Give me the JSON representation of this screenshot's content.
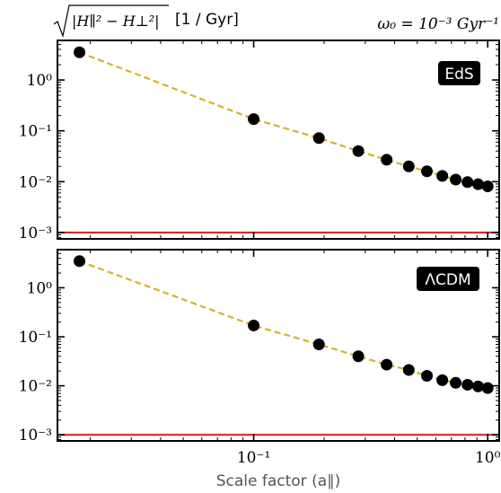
{
  "header": {
    "sqrt_inner": "|H∥² − H⊥²|",
    "units": "[1 / Gyr]",
    "omega_label": "ω₀ = 10⁻³ Gyr⁻¹"
  },
  "xlabel": "Scale factor (a∥)",
  "chart_data": [
    {
      "type": "scatter",
      "panel_label": "EdS",
      "x_scale": "log",
      "y_scale": "log",
      "xlim": [
        0.0145,
        1.12
      ],
      "ylim": [
        0.00075,
        6
      ],
      "grid": false,
      "x_ticks": [
        "10⁻¹",
        "10⁰"
      ],
      "y_ticks": [
        "10⁰",
        "10⁻¹",
        "10⁻²",
        "10⁻³"
      ],
      "series": [
        {
          "style": "points",
          "color": "#000000",
          "x": [
            0.018,
            0.1,
            0.19,
            0.28,
            0.37,
            0.46,
            0.55,
            0.64,
            0.73,
            0.82,
            0.91,
            1.0
          ],
          "y": [
            3.5,
            0.17,
            0.072,
            0.04,
            0.027,
            0.02,
            0.016,
            0.013,
            0.011,
            0.0098,
            0.0089,
            0.0081
          ]
        },
        {
          "style": "dashed-line",
          "color": "#d4b32c",
          "x": [
            0.018,
            0.1,
            0.19,
            0.28,
            0.37,
            0.46,
            0.55,
            0.64,
            0.73,
            0.82,
            0.91,
            1.0
          ],
          "y": [
            3.5,
            0.17,
            0.072,
            0.04,
            0.027,
            0.02,
            0.016,
            0.013,
            0.011,
            0.0098,
            0.0089,
            0.0081
          ]
        },
        {
          "style": "horizontal-line",
          "color": "#d62728",
          "y": 0.001
        }
      ]
    },
    {
      "type": "scatter",
      "panel_label": "ΛCDM",
      "x_scale": "log",
      "y_scale": "log",
      "xlim": [
        0.0145,
        1.12
      ],
      "ylim": [
        0.00075,
        6
      ],
      "grid": false,
      "x_ticks": [
        "10⁻¹",
        "10⁰"
      ],
      "y_ticks": [
        "10⁰",
        "10⁻¹",
        "10⁻²",
        "10⁻³"
      ],
      "series": [
        {
          "style": "points",
          "color": "#000000",
          "x": [
            0.018,
            0.1,
            0.19,
            0.28,
            0.37,
            0.46,
            0.55,
            0.64,
            0.73,
            0.82,
            0.91,
            1.0
          ],
          "y": [
            3.5,
            0.17,
            0.07,
            0.04,
            0.027,
            0.021,
            0.016,
            0.013,
            0.0115,
            0.0105,
            0.0097,
            0.009
          ]
        },
        {
          "style": "dashed-line",
          "color": "#d4b32c",
          "x": [
            0.018,
            0.1,
            0.19,
            0.28,
            0.37,
            0.46,
            0.55,
            0.64,
            0.73,
            0.82,
            0.91,
            1.0
          ],
          "y": [
            3.5,
            0.17,
            0.07,
            0.04,
            0.027,
            0.021,
            0.016,
            0.013,
            0.0115,
            0.0105,
            0.0097,
            0.009
          ]
        },
        {
          "style": "horizontal-line",
          "color": "#d62728",
          "y": 0.001
        }
      ]
    }
  ]
}
